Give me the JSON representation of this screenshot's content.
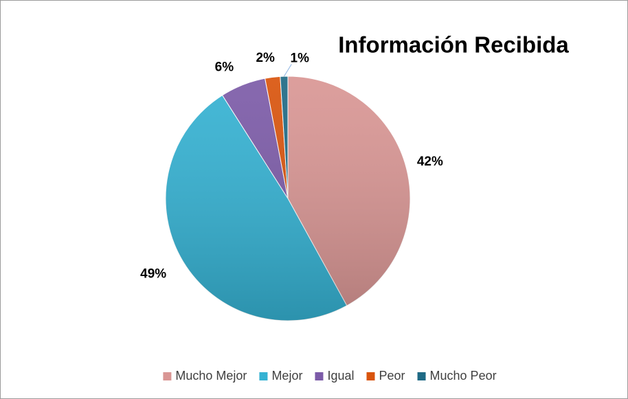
{
  "chart_data": {
    "type": "pie",
    "title": "Información Recibida",
    "categories": [
      "Mucho Mejor",
      "Mejor",
      "Igual",
      "Peor",
      "Mucho Peor"
    ],
    "values": [
      42,
      49,
      6,
      2,
      1
    ],
    "value_labels": [
      "42%",
      "49%",
      "6%",
      "2%",
      "1%"
    ],
    "colors": [
      "#d99694",
      "#35b2d3",
      "#7c5ba8",
      "#d9540d",
      "#1f6a85"
    ],
    "legend": "bottom"
  }
}
